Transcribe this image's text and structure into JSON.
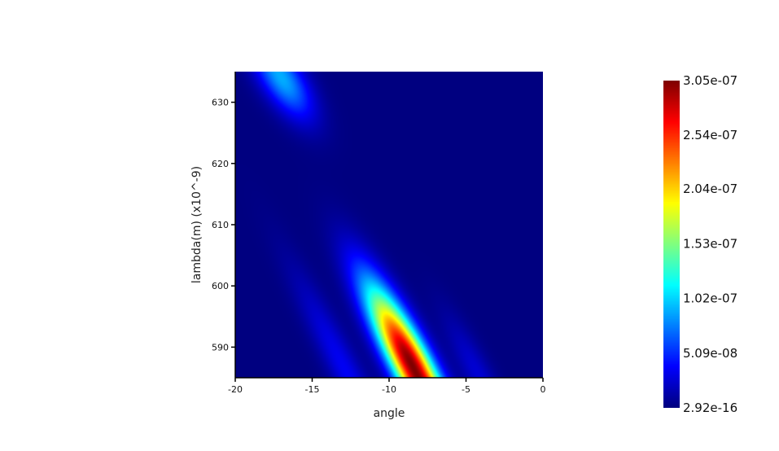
{
  "chart_data": {
    "type": "heatmap",
    "title": "",
    "xlabel": "angle",
    "ylabel": "lambda(m) (x10^-9)",
    "xlim": [
      -20,
      0
    ],
    "ylim": [
      585,
      635
    ],
    "xticks": [
      -20,
      -15,
      -10,
      -5,
      0
    ],
    "xtick_labels": [
      "-20",
      "-15",
      "-10",
      "-5",
      "0"
    ],
    "yticks": [
      590,
      600,
      610,
      620,
      630
    ],
    "ytick_labels": [
      "590",
      "600",
      "610",
      "620",
      "630"
    ],
    "colormap": "jet",
    "colorbar": {
      "min": 2.92e-16,
      "max": 3.05e-07,
      "labels": [
        "3.05e-07",
        "2.54e-07",
        "2.04e-07",
        "1.53e-07",
        "1.02e-07",
        "5.09e-08",
        "2.92e-16"
      ],
      "values": [
        3.05e-07,
        2.54e-07,
        2.04e-07,
        1.53e-07,
        1.02e-07,
        5.09e-08,
        2.92e-16
      ]
    },
    "features": [
      {
        "name": "main-band",
        "peak_angle": -8.5,
        "peak_lambda": 587,
        "peak_value": 3.05e-07,
        "slope_angle_per_nm": -0.2,
        "extends_to_lambda": 610
      },
      {
        "name": "upper-band",
        "peak_angle": -17.0,
        "peak_lambda": 634,
        "peak_value": 9e-08,
        "slope_angle_per_nm": -0.2,
        "extends_to_lambda": 624
      },
      {
        "name": "side-fringe-left",
        "peak_angle": -13.0,
        "peak_lambda": 587,
        "peak_value": 3.5e-08
      },
      {
        "name": "side-fringe-right",
        "peak_angle": -4.5,
        "peak_lambda": 587,
        "peak_value": 2.5e-08
      }
    ]
  }
}
